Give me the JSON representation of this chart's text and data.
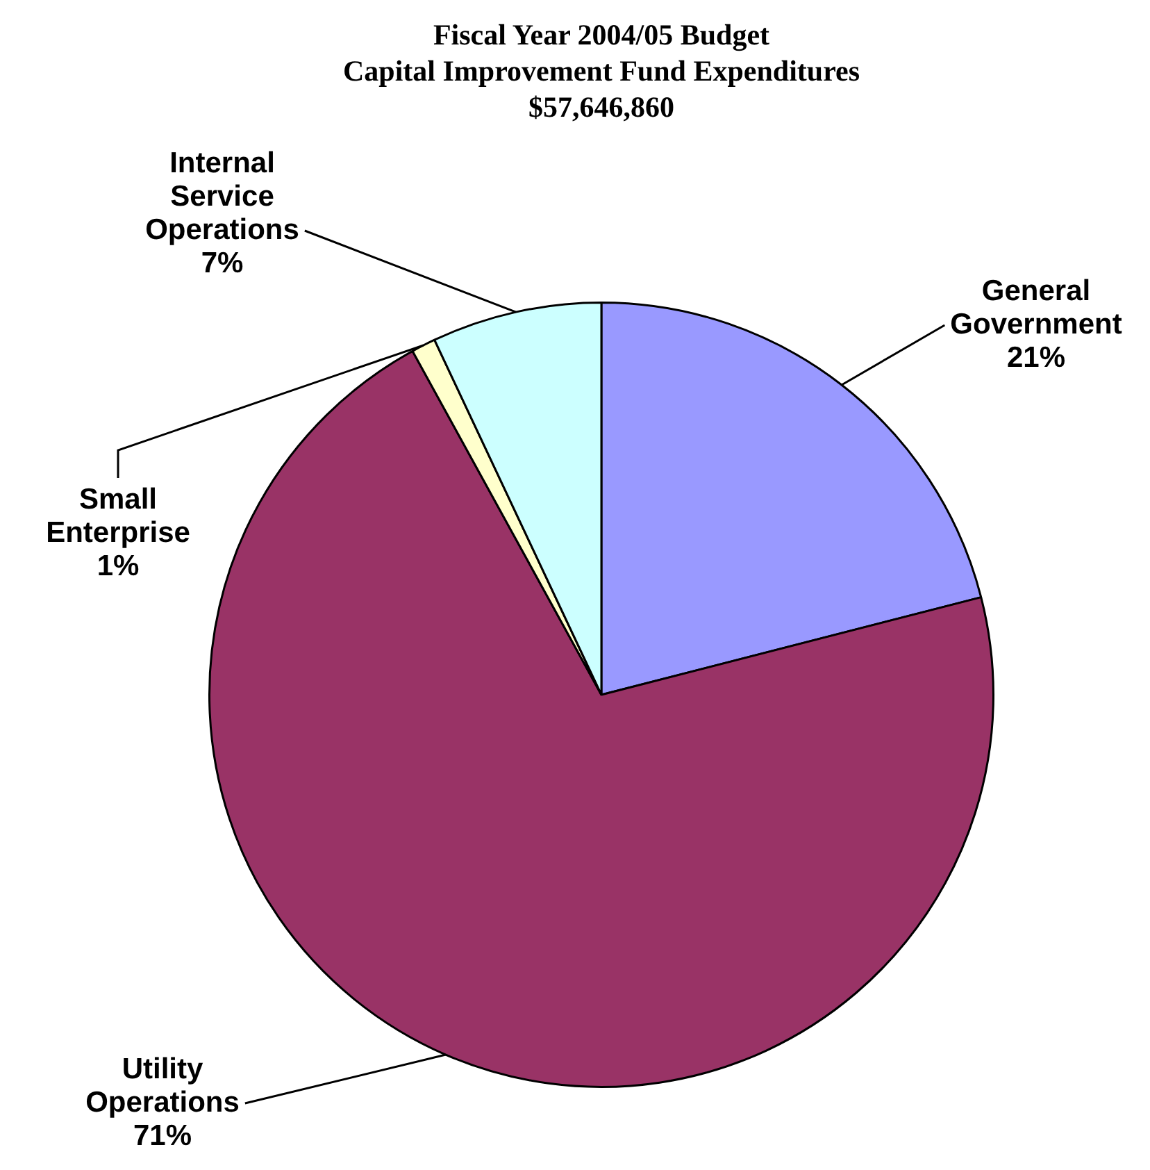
{
  "chart_data": {
    "type": "pie",
    "title": "Fiscal Year 2004/05 Budget",
    "subtitle": "Capital Improvement Fund Expenditures",
    "annotations": [
      "$57,646,860"
    ],
    "categories": [
      "General Government",
      "Utility Operations",
      "Small Enterprise",
      "Internal Service Operations"
    ],
    "values": [
      21,
      71,
      1,
      7
    ],
    "colors": [
      "#9999ff",
      "#993366",
      "#ffffcc",
      "#ccffff"
    ],
    "value_labels": [
      "21%",
      "71%",
      "1%",
      "7%"
    ],
    "legend": false
  }
}
